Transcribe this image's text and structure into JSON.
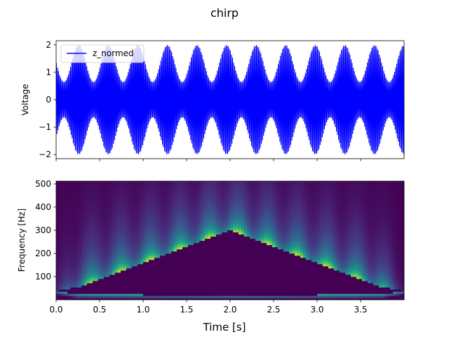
{
  "chart_data": [
    {
      "type": "line",
      "title": "chirp",
      "xlabel": "",
      "ylabel": "Voltage",
      "xlim": [
        0,
        4
      ],
      "ylim": [
        -2.15,
        2.15
      ],
      "yticks": [
        -2,
        -1,
        0,
        1,
        2
      ],
      "xticks": [
        0,
        0.5,
        1,
        1.5,
        2,
        2.5,
        3,
        3.5
      ],
      "legend_position": "top-left",
      "grid": false,
      "series": [
        {
          "name": "z_normed",
          "color": "#0000ff",
          "carrier_frequency_hz": 80,
          "envelope_period_s": 0.34,
          "envelope_min": 0.65,
          "envelope_max": 2.0
        }
      ]
    },
    {
      "type": "heatmap",
      "xlabel": "Time [s]",
      "ylabel": "Frequency [Hz]",
      "xlim": [
        0,
        4
      ],
      "ylim": [
        0,
        512
      ],
      "xtick_labels": [
        "0.0",
        "0.5",
        "1.0",
        "1.5",
        "2.0",
        "2.5",
        "3.0",
        "3.5"
      ],
      "xticks": [
        0,
        0.5,
        1,
        1.5,
        2,
        2.5,
        3,
        3.5
      ],
      "yticks": [
        100,
        200,
        300,
        400,
        500
      ],
      "colormap": "viridis",
      "band_lower_edge_hz": [
        [
          0,
          40
        ],
        [
          0.25,
          25
        ],
        [
          2,
          20
        ],
        [
          3.75,
          25
        ],
        [
          4,
          40
        ]
      ],
      "band_upper_edge_hz": [
        [
          0,
          40
        ],
        [
          0.3,
          60
        ],
        [
          2,
          300
        ],
        [
          3.7,
          60
        ],
        [
          4,
          40
        ]
      ],
      "colors": {
        "low": "#440154",
        "mid": "#21918c",
        "high": "#fde725"
      }
    }
  ]
}
